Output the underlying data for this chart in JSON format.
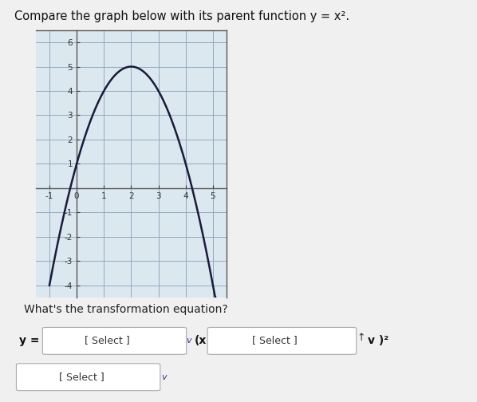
{
  "title": "Compare the graph below with its parent function y = x².",
  "title_fontsize": 10.5,
  "background_color": "#f0f0f0",
  "graph_bg_color": "#dce8f0",
  "grid_color": "#8faabf",
  "grid_linewidth": 0.7,
  "border_color": "#555555",
  "curve_color": "#1a1a3a",
  "curve_linewidth": 1.8,
  "xlim": [
    -1.5,
    5.5
  ],
  "ylim": [
    -4.5,
    6.5
  ],
  "xticks": [
    -1,
    0,
    1,
    2,
    3,
    4,
    5
  ],
  "yticks": [
    -4,
    -3,
    -2,
    -1,
    0,
    1,
    2,
    3,
    4,
    5,
    6
  ],
  "tick_fontsize": 7.5,
  "question_text": "What's the transformation equation?",
  "question_fontsize": 10,
  "vertex_x": 2,
  "vertex_y": 5,
  "curve_a": -1,
  "select_text": "[ Select ]"
}
